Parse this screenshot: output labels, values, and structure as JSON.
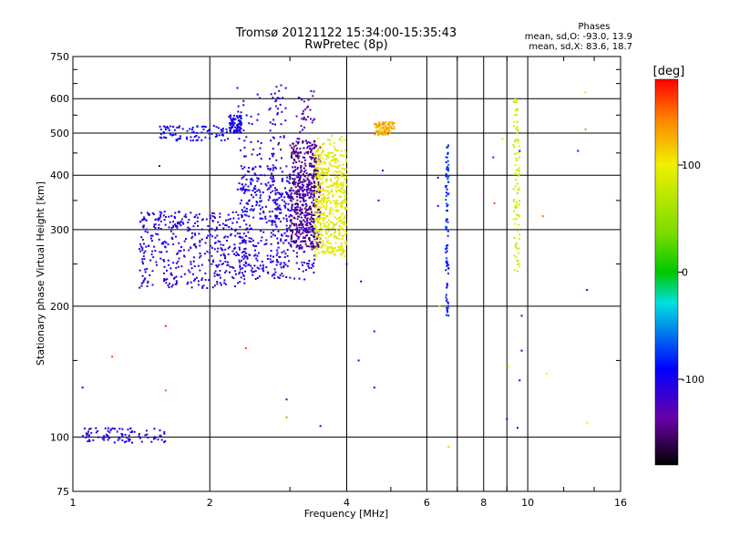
{
  "chart_data": {
    "type": "scatter",
    "title": "Tromsø 20121122 15:34:00-15:35:43",
    "subtitle": "RwPretec (8p)",
    "xlabel": "Frequency [MHz]",
    "ylabel": "Stationary phase Virtual Height [km]",
    "xscale": "log",
    "yscale": "log",
    "xlim": [
      1,
      16
    ],
    "ylim": [
      75,
      750
    ],
    "xticks": [
      1,
      2,
      4,
      6,
      8,
      10,
      16
    ],
    "xtick_labels": [
      "1",
      "2",
      "4",
      "6",
      "8",
      "10",
      "16"
    ],
    "yticks": [
      75,
      100,
      200,
      300,
      400,
      500,
      600,
      750
    ],
    "ytick_labels": [
      "75",
      "100",
      "200",
      "300",
      "400",
      "500",
      "600",
      "750"
    ],
    "grid": true,
    "stats": {
      "heading": "Phases",
      "line1": "mean, sd,O: -93.0, 13.9",
      "line2": "mean, sd,X:  83.6, 18.7"
    },
    "colorbar": {
      "label": "[deg]",
      "range": [
        -180,
        180
      ],
      "ticks": [
        100,
        0,
        -100
      ],
      "tick_labels": [
        "100",
        "0",
        "-100"
      ]
    },
    "traces": [
      {
        "f": [
          1.05,
          1.6
        ],
        "h": [
          97,
          105
        ],
        "phase": -105
      },
      {
        "f": [
          1.55,
          2.2
        ],
        "h": [
          480,
          520
        ],
        "phase": -95
      },
      {
        "f": [
          2.2,
          2.35
        ],
        "h": [
          500,
          550
        ],
        "phase": -100
      },
      {
        "f": [
          2.3,
          2.6
        ],
        "h": [
          240,
          620
        ],
        "phase": -105
      },
      {
        "f": [
          2.7,
          2.95
        ],
        "h": [
          300,
          650
        ],
        "phase": -110
      },
      {
        "f": [
          3.1,
          3.4
        ],
        "h": [
          290,
          640
        ],
        "phase": -130
      },
      {
        "f": [
          3.45,
          4.0
        ],
        "h": [
          265,
          500
        ],
        "phase": 95
      },
      {
        "f": [
          4.6,
          5.1
        ],
        "h": [
          495,
          530
        ],
        "phase": 125
      },
      {
        "f": [
          6.6,
          6.7
        ],
        "h": [
          190,
          470
        ],
        "phase": -80
      },
      {
        "f": [
          9.3,
          9.6
        ],
        "h": [
          240,
          600
        ],
        "phase": 85
      }
    ],
    "clusters": [
      {
        "f": [
          1.4,
          2.4
        ],
        "h": [
          220,
          330
        ],
        "phase": -110
      },
      {
        "f": [
          2.3,
          3.4
        ],
        "h": [
          230,
          420
        ],
        "phase": -105
      },
      {
        "f": [
          3.0,
          3.5
        ],
        "h": [
          270,
          480
        ],
        "phase": -150
      },
      {
        "f": [
          3.4,
          4.0
        ],
        "h": [
          260,
          460
        ],
        "phase": 95
      }
    ],
    "sparse_points": [
      {
        "f": 1.05,
        "h": 130,
        "phase": -90
      },
      {
        "f": 1.22,
        "h": 153,
        "phase": 160
      },
      {
        "f": 1.6,
        "h": 180,
        "phase": 170
      },
      {
        "f": 1.6,
        "h": 128,
        "phase": 150
      },
      {
        "f": 1.55,
        "h": 420,
        "phase": -100
      },
      {
        "f": 2.4,
        "h": 160,
        "phase": 160
      },
      {
        "f": 2.3,
        "h": 635,
        "phase": -100
      },
      {
        "f": 2.95,
        "h": 122,
        "phase": -110
      },
      {
        "f": 2.95,
        "h": 111,
        "phase": 30
      },
      {
        "f": 3.5,
        "h": 106,
        "phase": -90
      },
      {
        "f": 4.0,
        "h": 250,
        "phase": -120
      },
      {
        "f": 4.3,
        "h": 228,
        "phase": -90
      },
      {
        "f": 4.25,
        "h": 150,
        "phase": -110
      },
      {
        "f": 4.6,
        "h": 175,
        "phase": -110
      },
      {
        "f": 4.6,
        "h": 130,
        "phase": -100
      },
      {
        "f": 4.7,
        "h": 350,
        "phase": -110
      },
      {
        "f": 4.8,
        "h": 410,
        "phase": -100
      },
      {
        "f": 6.35,
        "h": 395,
        "phase": -100
      },
      {
        "f": 6.35,
        "h": 340,
        "phase": -110
      },
      {
        "f": 6.4,
        "h": 200,
        "phase": 90
      },
      {
        "f": 6.7,
        "h": 95,
        "phase": 120
      },
      {
        "f": 8.4,
        "h": 440,
        "phase": -80
      },
      {
        "f": 8.45,
        "h": 345,
        "phase": 160
      },
      {
        "f": 8.8,
        "h": 485,
        "phase": 110
      },
      {
        "f": 9.0,
        "h": 110,
        "phase": -90
      },
      {
        "f": 9.05,
        "h": 145,
        "phase": 80
      },
      {
        "f": 9.5,
        "h": 105,
        "phase": -100
      },
      {
        "f": 9.6,
        "h": 135,
        "phase": -100
      },
      {
        "f": 9.7,
        "h": 158,
        "phase": -90
      },
      {
        "f": 9.7,
        "h": 190,
        "phase": -110
      },
      {
        "f": 9.6,
        "h": 455,
        "phase": -130
      },
      {
        "f": 9.4,
        "h": 600,
        "phase": 60
      },
      {
        "f": 10.8,
        "h": 322,
        "phase": 150
      },
      {
        "f": 11.0,
        "h": 140,
        "phase": 100
      },
      {
        "f": 12.9,
        "h": 455,
        "phase": -110
      },
      {
        "f": 13.4,
        "h": 620,
        "phase": 100
      },
      {
        "f": 13.4,
        "h": 510,
        "phase": 140
      },
      {
        "f": 13.5,
        "h": 108,
        "phase": 100
      },
      {
        "f": 13.5,
        "h": 218,
        "phase": -110
      }
    ]
  }
}
